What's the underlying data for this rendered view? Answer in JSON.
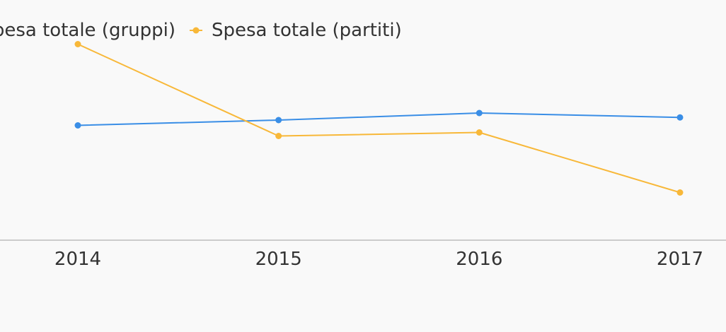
{
  "chart_data": {
    "type": "line",
    "categories": [
      "2014",
      "2015",
      "2016",
      "2017"
    ],
    "series": [
      {
        "name": "Spesa totale (gruppi)",
        "color": "#3a8ee6",
        "values": [
          55,
          58,
          62,
          59.5
        ]
      },
      {
        "name": "Spesa totale (partiti)",
        "color": "#f8b839",
        "values": [
          101,
          49,
          51,
          17
        ]
      }
    ],
    "title": "",
    "xlabel": "",
    "ylabel": "",
    "ylim": [
      -10,
      120
    ],
    "grid": false,
    "legend": "top"
  }
}
